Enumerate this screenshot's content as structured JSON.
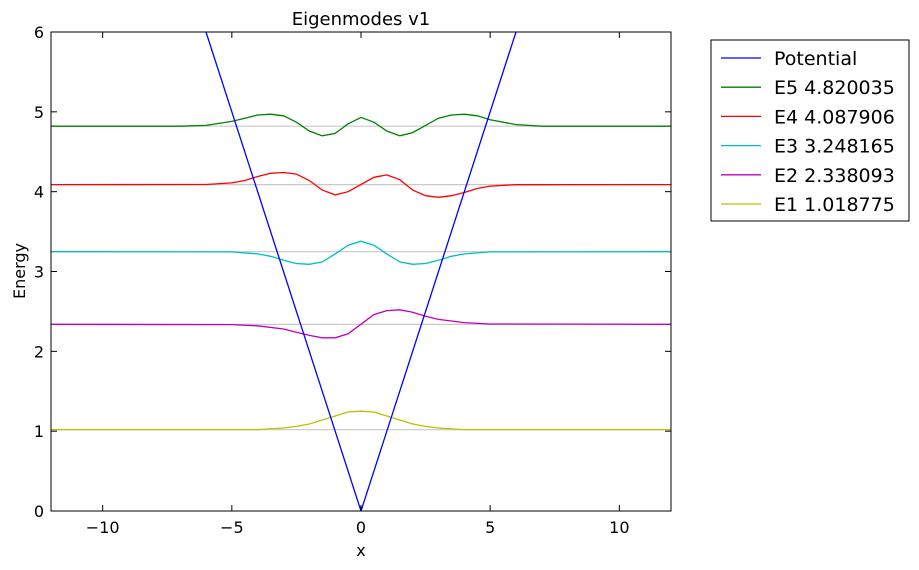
{
  "chart_data": {
    "type": "line",
    "title": "Eigenmodes v1",
    "xlabel": "x",
    "ylabel": "Energy",
    "xlim": [
      -12,
      12
    ],
    "ylim": [
      0,
      6
    ],
    "xticks": [
      -10,
      -5,
      0,
      5,
      10
    ],
    "xtick_labels": [
      "−10",
      "−5",
      "0",
      "5",
      "10"
    ],
    "yticks": [
      0,
      1,
      2,
      3,
      4,
      5,
      6
    ],
    "ytick_labels": [
      "0",
      "1",
      "2",
      "3",
      "4",
      "5",
      "6"
    ],
    "grid": false,
    "legend_position": "outside-right-top",
    "potential": {
      "name": "Potential",
      "color": "#0000ff",
      "x": [
        -6,
        0,
        6
      ],
      "y": [
        6,
        0,
        6
      ]
    },
    "reference_line_color": "#c8c8c8",
    "series": [
      {
        "name": "E5 4.820035",
        "energy": 4.820035,
        "color": "#008000",
        "x": [
          -12,
          -7,
          -6,
          -5,
          -4.5,
          -4,
          -3.5,
          -3,
          -2.5,
          -2,
          -1.5,
          -1,
          -0.5,
          0,
          0.5,
          1,
          1.5,
          2,
          2.5,
          3,
          3.5,
          4,
          4.5,
          5,
          6,
          7,
          12
        ],
        "y": [
          4.82,
          4.82,
          4.83,
          4.88,
          4.92,
          4.96,
          4.97,
          4.95,
          4.87,
          4.76,
          4.7,
          4.73,
          4.85,
          4.93,
          4.87,
          4.76,
          4.7,
          4.74,
          4.83,
          4.92,
          4.96,
          4.97,
          4.95,
          4.9,
          4.84,
          4.82,
          4.82
        ]
      },
      {
        "name": "E4 4.087906",
        "energy": 4.087906,
        "color": "#ff0000",
        "x": [
          -12,
          -6,
          -5,
          -4.5,
          -4,
          -3.5,
          -3,
          -2.5,
          -2,
          -1.5,
          -1,
          -0.5,
          0,
          0.5,
          1,
          1.5,
          2,
          2.5,
          3,
          3.5,
          4,
          4.5,
          5,
          6,
          12
        ],
        "y": [
          4.088,
          4.09,
          4.11,
          4.14,
          4.19,
          4.23,
          4.24,
          4.22,
          4.14,
          4.02,
          3.96,
          4.0,
          4.09,
          4.18,
          4.21,
          4.15,
          4.02,
          3.95,
          3.93,
          3.95,
          3.99,
          4.04,
          4.07,
          4.087,
          4.088
        ]
      },
      {
        "name": "E3 3.248165",
        "energy": 3.248165,
        "color": "#00bfbf",
        "x": [
          -12,
          -5,
          -4,
          -3.5,
          -3,
          -2.5,
          -2,
          -1.5,
          -1,
          -0.5,
          0,
          0.5,
          1,
          1.5,
          2,
          2.5,
          3,
          3.5,
          4,
          5,
          12
        ],
        "y": [
          3.248,
          3.245,
          3.22,
          3.19,
          3.14,
          3.1,
          3.09,
          3.12,
          3.22,
          3.33,
          3.38,
          3.33,
          3.22,
          3.12,
          3.09,
          3.1,
          3.14,
          3.19,
          3.22,
          3.245,
          3.248
        ]
      },
      {
        "name": "E2 2.338093",
        "energy": 2.338093,
        "color": "#bf00bf",
        "x": [
          -12,
          -5,
          -4,
          -3,
          -2.5,
          -2,
          -1.5,
          -1,
          -0.5,
          0,
          0.5,
          1,
          1.5,
          2,
          2.5,
          3,
          4,
          5,
          12
        ],
        "y": [
          2.338,
          2.335,
          2.32,
          2.28,
          2.24,
          2.2,
          2.17,
          2.17,
          2.22,
          2.34,
          2.46,
          2.51,
          2.52,
          2.49,
          2.44,
          2.4,
          2.36,
          2.342,
          2.338
        ]
      },
      {
        "name": "E1 1.018775",
        "energy": 1.018775,
        "color": "#bfbf00",
        "x": [
          -12,
          -4,
          -3,
          -2.5,
          -2,
          -1.5,
          -1,
          -0.5,
          0,
          0.5,
          1,
          1.5,
          2,
          2.5,
          3,
          4,
          12
        ],
        "y": [
          1.019,
          1.02,
          1.04,
          1.06,
          1.09,
          1.14,
          1.19,
          1.24,
          1.25,
          1.24,
          1.19,
          1.14,
          1.09,
          1.06,
          1.04,
          1.02,
          1.019
        ]
      }
    ]
  }
}
